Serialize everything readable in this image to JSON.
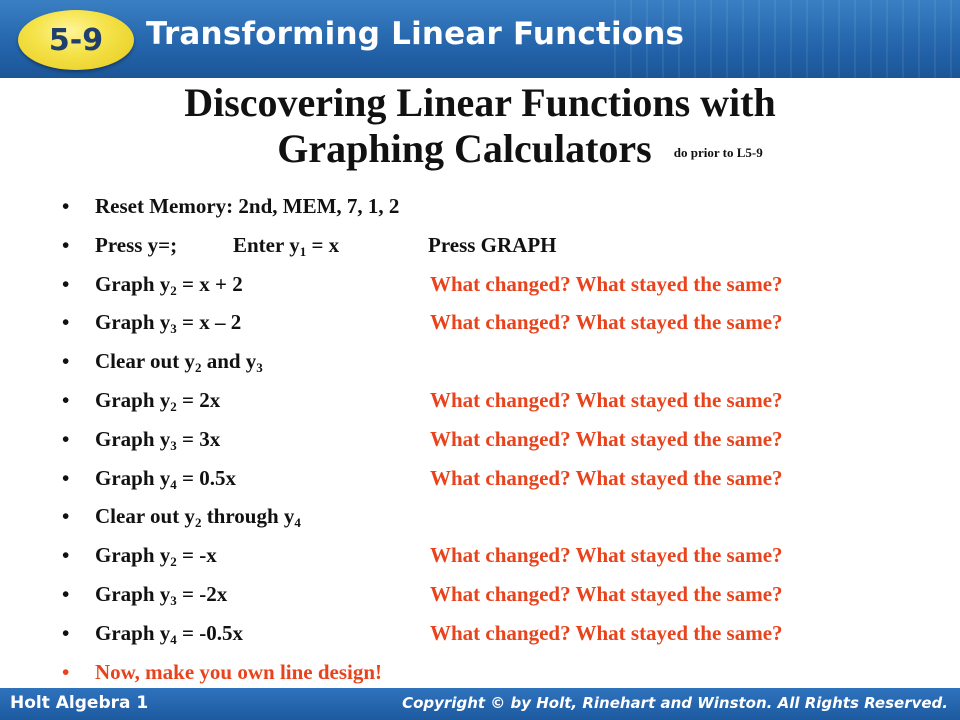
{
  "header": {
    "badge": "5-9",
    "title": "Transforming Linear Functions"
  },
  "slide": {
    "title_line1": "Discovering Linear Functions with",
    "title_line2": "Graphing Calculators",
    "title_note": "do prior to L5-9"
  },
  "bullets": [
    {
      "main": [
        "Reset Memory:  2nd, MEM, 7, 1, 2"
      ]
    },
    {
      "main": [
        "Press y=;"
      ],
      "mid": [
        "Enter y",
        "1",
        " = x"
      ],
      "gr": "Press GRAPH"
    },
    {
      "main": [
        "Graph y",
        "2",
        " = x + 2"
      ],
      "q": "What changed? What stayed the same?"
    },
    {
      "main": [
        "Graph y",
        "3",
        " = x – 2"
      ],
      "q": "What changed? What stayed the same?"
    },
    {
      "main": [
        "Clear out y",
        "2",
        " and  y",
        "3",
        ""
      ]
    },
    {
      "main": [
        "Graph y",
        "2",
        " = 2x"
      ],
      "q": "What changed? What stayed the same?"
    },
    {
      "main": [
        "Graph y",
        "3",
        " = 3x"
      ],
      "q": "What changed? What stayed the same?"
    },
    {
      "main": [
        "Graph y",
        "4",
        " = 0.5x"
      ],
      "q": "What changed? What stayed the same?"
    },
    {
      "main": [
        "Clear out y",
        "2",
        " through  y",
        "4",
        ""
      ]
    },
    {
      "main": [
        "Graph y",
        "2",
        " = -x"
      ],
      "q": "What changed? What stayed the same?"
    },
    {
      "main": [
        "Graph y",
        "3",
        " = -2x"
      ],
      "q": "What changed? What stayed the same?"
    },
    {
      "main": [
        "Graph y",
        "4",
        " = -0.5x"
      ],
      "q": "What changed? What stayed the same?"
    },
    {
      "main": [
        "Now, make you own line design!"
      ],
      "red": true
    }
  ],
  "bullet_symbol": "•",
  "footer": {
    "left": "Holt Algebra 1",
    "right": "Copyright © by Holt, Rinehart and Winston. All Rights Reserved."
  },
  "colors": {
    "header_blue": "#2566ad",
    "badge_yellow": "#f5e34a",
    "question_red": "#e8431c"
  }
}
